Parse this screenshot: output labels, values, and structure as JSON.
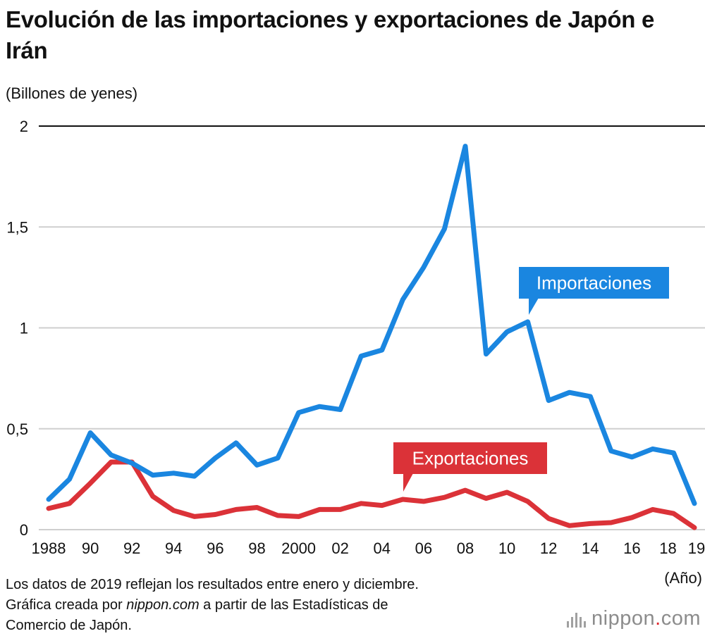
{
  "chart_data": {
    "type": "line",
    "title": "Evolución de las importaciones y exportaciones de Japón e Irán",
    "ylabel": "(Billones de yenes)",
    "xlabel": "(Año)",
    "ylim": [
      0,
      2
    ],
    "y_ticks": [
      {
        "value": 0,
        "label": "0"
      },
      {
        "value": 0.5,
        "label": "0,5"
      },
      {
        "value": 1,
        "label": "1"
      },
      {
        "value": 1.5,
        "label": "1,5"
      },
      {
        "value": 2,
        "label": "2"
      }
    ],
    "x": [
      1988,
      1989,
      1990,
      1991,
      1992,
      1993,
      1994,
      1995,
      1996,
      1997,
      1998,
      1999,
      2000,
      2001,
      2002,
      2003,
      2004,
      2005,
      2006,
      2007,
      2008,
      2009,
      2010,
      2011,
      2012,
      2013,
      2014,
      2015,
      2016,
      2017,
      2018,
      2019
    ],
    "x_ticks": [
      {
        "year": 1988,
        "label": "1988"
      },
      {
        "year": 1990,
        "label": "90"
      },
      {
        "year": 1992,
        "label": "92"
      },
      {
        "year": 1994,
        "label": "94"
      },
      {
        "year": 1996,
        "label": "96"
      },
      {
        "year": 1998,
        "label": "98"
      },
      {
        "year": 2000,
        "label": "2000"
      },
      {
        "year": 2002,
        "label": "02"
      },
      {
        "year": 2004,
        "label": "04"
      },
      {
        "year": 2006,
        "label": "06"
      },
      {
        "year": 2008,
        "label": "08"
      },
      {
        "year": 2010,
        "label": "10"
      },
      {
        "year": 2012,
        "label": "12"
      },
      {
        "year": 2014,
        "label": "14"
      },
      {
        "year": 2016,
        "label": "16"
      },
      {
        "year": 2018,
        "label": "18"
      },
      {
        "year": 2019,
        "label": "19"
      }
    ],
    "series": [
      {
        "name": "Importaciones",
        "color": "#1a86e0",
        "values": [
          0.15,
          0.25,
          0.48,
          0.37,
          0.33,
          0.27,
          0.28,
          0.265,
          0.355,
          0.43,
          0.32,
          0.355,
          0.58,
          0.61,
          0.595,
          0.86,
          0.89,
          1.14,
          1.3,
          1.49,
          1.9,
          0.87,
          0.98,
          1.03,
          0.64,
          0.68,
          0.66,
          0.39,
          0.36,
          0.4,
          0.38,
          0.13
        ]
      },
      {
        "name": "Exportaciones",
        "color": "#db3238",
        "values": [
          0.105,
          0.13,
          0.23,
          0.335,
          0.335,
          0.165,
          0.095,
          0.065,
          0.075,
          0.1,
          0.11,
          0.07,
          0.065,
          0.1,
          0.1,
          0.13,
          0.12,
          0.15,
          0.14,
          0.16,
          0.195,
          0.155,
          0.185,
          0.14,
          0.055,
          0.02,
          0.03,
          0.035,
          0.06,
          0.1,
          0.08,
          0.01
        ]
      }
    ],
    "legend": "inline callouts"
  },
  "notes": {
    "line1": "Los datos de 2019 reflejan los resultados entre enero y diciembre.",
    "line2_prefix": "Gráfica creada por ",
    "line2_source": "nippon.com",
    "line2_suffix": " a partir de las Estadísticas de",
    "line3": "Comercio de Japón."
  },
  "logo": {
    "name": "nippon",
    "dot": ".",
    "tld": "com",
    "accent": "#e0262c"
  }
}
